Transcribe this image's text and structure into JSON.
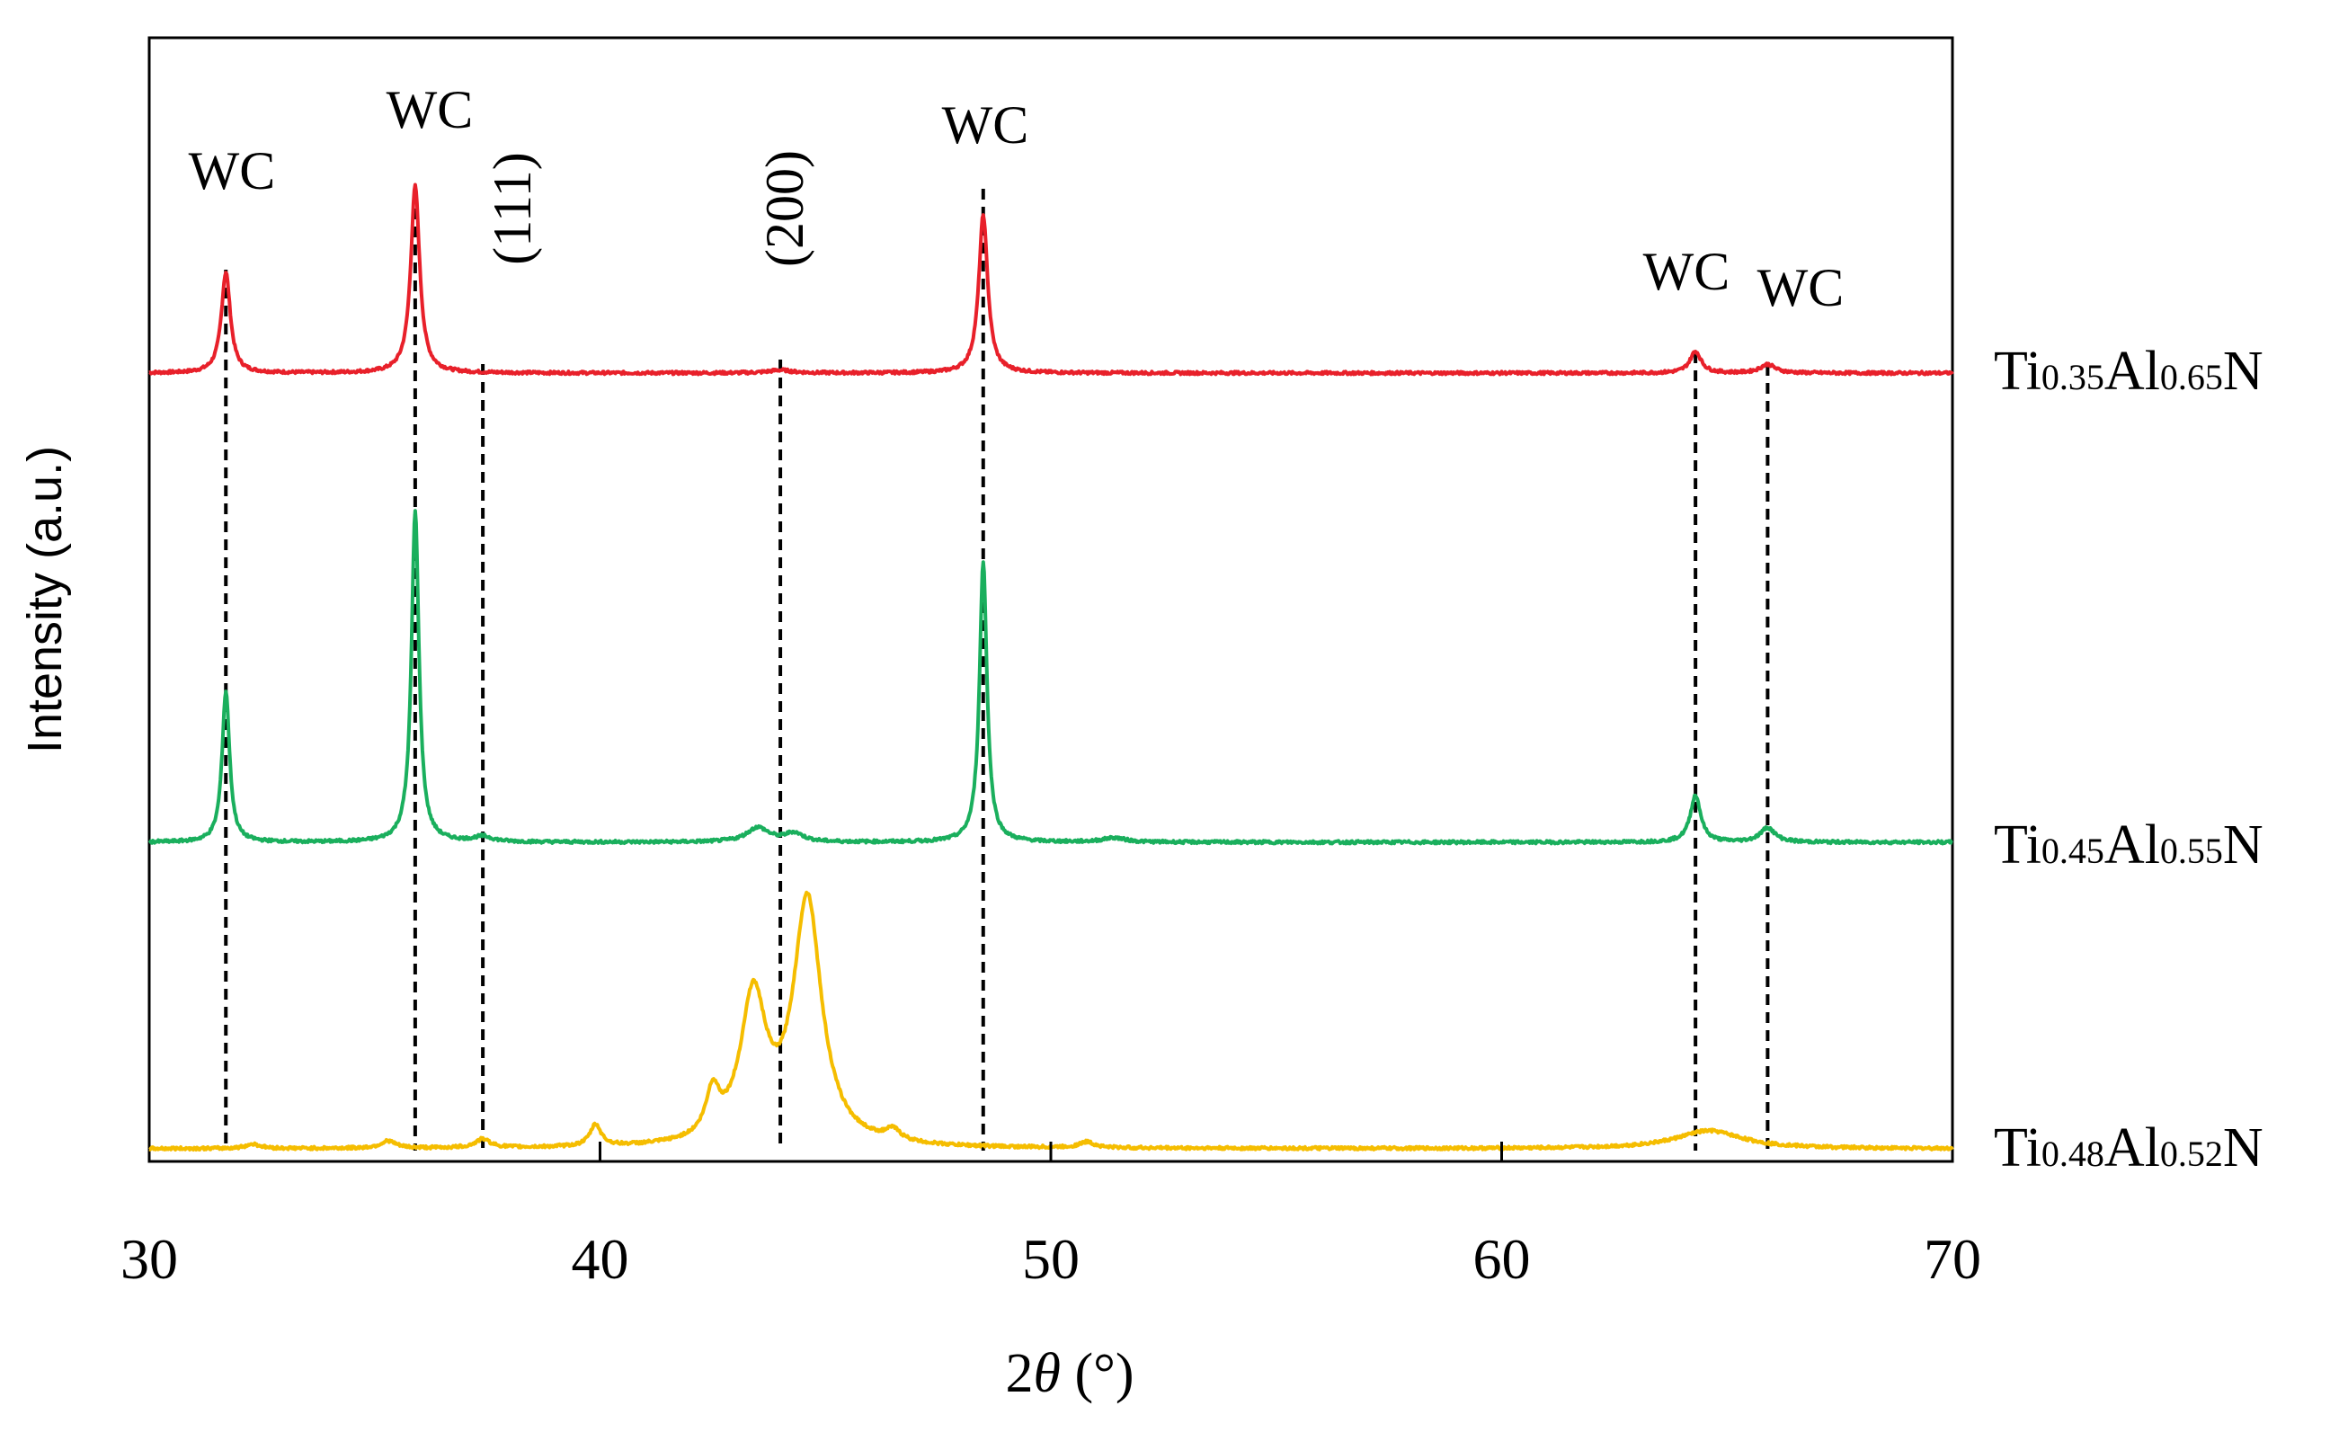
{
  "chart_data": {
    "type": "line",
    "title": "",
    "xlabel_prefix": "2",
    "xlabel_theta": "θ",
    "xlabel_suffix": " (°)",
    "ylabel": "Intensity (a.u.)",
    "xlim": [
      30,
      70
    ],
    "xticks": [
      30,
      40,
      50,
      60,
      70
    ],
    "series_order": [
      "Ti0.48Al0.52N",
      "Ti0.45Al0.55N",
      "Ti0.35Al0.65N"
    ],
    "series": [
      {
        "name": "Ti0.35Al0.65N",
        "label": {
          "a": "Ti",
          "b": "0.35",
          "c": "Al",
          "d": "0.65",
          "e": "N"
        },
        "color": "#e8202a",
        "baseline": 0,
        "peaks": [
          [
            31.7,
            0.14,
            0.12
          ],
          [
            35.9,
            0.26,
            0.12
          ],
          [
            44.0,
            0.004,
            0.3
          ],
          [
            48.5,
            0.22,
            0.12
          ],
          [
            64.3,
            0.03,
            0.15
          ],
          [
            65.9,
            0.012,
            0.2
          ]
        ]
      },
      {
        "name": "Ti0.45Al0.55N",
        "label": {
          "a": "Ti",
          "b": "0.45",
          "c": "Al",
          "d": "0.55",
          "e": "N"
        },
        "color": "#1aaf5d",
        "baseline": 0,
        "peaks": [
          [
            31.7,
            0.21,
            0.1
          ],
          [
            35.9,
            0.46,
            0.1
          ],
          [
            37.4,
            0.007,
            0.25
          ],
          [
            43.5,
            0.02,
            0.3
          ],
          [
            44.3,
            0.012,
            0.25
          ],
          [
            48.5,
            0.39,
            0.1
          ],
          [
            51.4,
            0.006,
            0.3
          ],
          [
            64.3,
            0.065,
            0.14
          ],
          [
            65.9,
            0.02,
            0.2
          ]
        ]
      },
      {
        "name": "Ti0.48Al0.52N",
        "label": {
          "a": "Ti",
          "b": "0.48",
          "c": "Al",
          "d": "0.52",
          "e": "N"
        },
        "color": "#f5bd00",
        "baseline": 0,
        "peaks": [
          [
            32.3,
            0.006,
            0.2
          ],
          [
            35.3,
            0.01,
            0.2
          ],
          [
            37.4,
            0.012,
            0.2
          ],
          [
            39.9,
            0.03,
            0.15
          ],
          [
            42.5,
            0.06,
            0.18
          ],
          [
            43.4,
            0.2,
            0.35
          ],
          [
            44.6,
            0.34,
            0.38
          ],
          [
            46.5,
            0.015,
            0.2
          ],
          [
            50.8,
            0.008,
            0.2
          ],
          [
            64.6,
            0.025,
            0.9
          ]
        ]
      }
    ],
    "reference_lines": [
      {
        "x": 31.7,
        "label": "WC"
      },
      {
        "x": 35.9,
        "label": "WC"
      },
      {
        "x": 37.4,
        "label": "(111)"
      },
      {
        "x": 44.0,
        "label": "(200)"
      },
      {
        "x": 48.5,
        "label": "WC"
      },
      {
        "x": 64.3,
        "label": "WC"
      },
      {
        "x": 65.9,
        "label": "WC"
      }
    ],
    "grid": false,
    "legend": "right"
  }
}
